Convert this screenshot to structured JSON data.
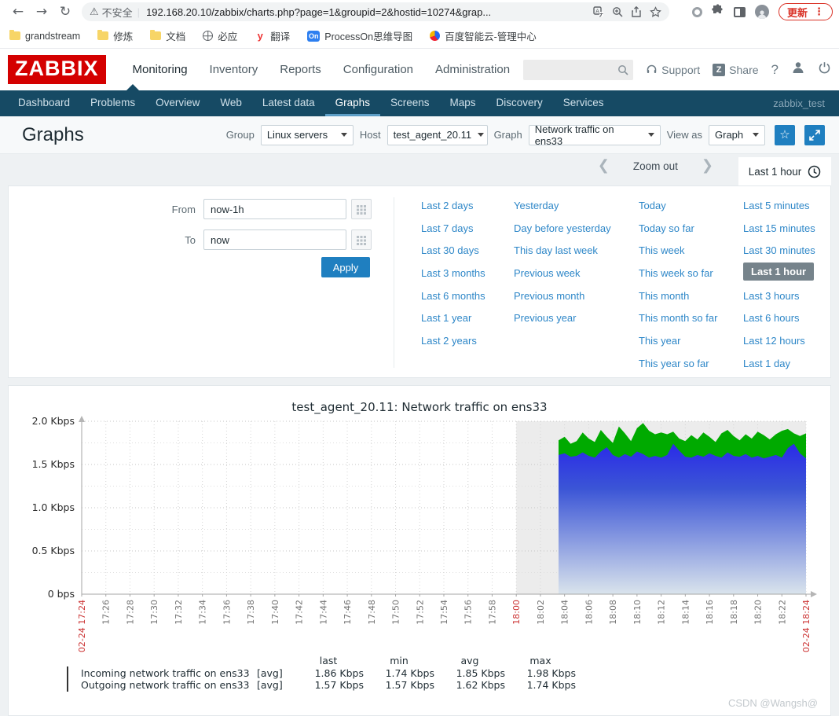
{
  "browser": {
    "security_label": "不安全",
    "url": "192.168.20.10/zabbix/charts.php?page=1&groupid=2&hostid=10274&grap...",
    "update_button": "更新",
    "toolbar_icons": [
      "back-icon",
      "forward-icon",
      "reload-icon",
      "warning-icon",
      "translate-icon",
      "zoom-icon",
      "share-icon",
      "bookmark-star-icon",
      "extension-ring-icon",
      "puzzle-icon",
      "side-panel-icon",
      "profile-avatar",
      "menu-dots-icon"
    ],
    "bookmarks": [
      {
        "label": "grandstream",
        "icon": "folder"
      },
      {
        "label": "修炼",
        "icon": "folder"
      },
      {
        "label": "文档",
        "icon": "folder"
      },
      {
        "label": "必应",
        "icon": "globe"
      },
      {
        "label": "翻译",
        "icon": "y-badge"
      },
      {
        "label": "ProcessOn思维导图",
        "icon": "on-badge"
      },
      {
        "label": "百度智能云-管理中心",
        "icon": "baidu"
      }
    ]
  },
  "header": {
    "logo": "ZABBIX",
    "menu": [
      "Monitoring",
      "Inventory",
      "Reports",
      "Configuration",
      "Administration"
    ],
    "active_menu": "Monitoring",
    "support_label": "Support",
    "share_label": "Share",
    "share_badge": "Z",
    "help_label": "?"
  },
  "nav": {
    "items": [
      "Dashboard",
      "Problems",
      "Overview",
      "Web",
      "Latest data",
      "Graphs",
      "Screens",
      "Maps",
      "Discovery",
      "Services"
    ],
    "active": "Graphs",
    "context": "zabbix_test"
  },
  "toolbar": {
    "page_title": "Graphs",
    "group_label": "Group",
    "group_value": "Linux servers",
    "host_label": "Host",
    "host_value": "test_agent_20.11",
    "graph_label": "Graph",
    "graph_value": "Network traffic on ens33",
    "viewas_label": "View as",
    "viewas_value": "Graph"
  },
  "timebar": {
    "zoom_out_label": "Zoom out",
    "range_tab_label": "Last 1 hour"
  },
  "time_filter": {
    "from_label": "From",
    "from_value": "now-1h",
    "to_label": "To",
    "to_value": "now",
    "apply_label": "Apply",
    "selected": "Last 1 hour",
    "columns": [
      [
        "Last 2 days",
        "Last 7 days",
        "Last 30 days",
        "Last 3 months",
        "Last 6 months",
        "Last 1 year",
        "Last 2 years"
      ],
      [
        "Yesterday",
        "Day before yesterday",
        "This day last week",
        "Previous week",
        "Previous month",
        "Previous year"
      ],
      [
        "Today",
        "Today so far",
        "This week",
        "This week so far",
        "This month",
        "This month so far",
        "This year",
        "This year so far"
      ],
      [
        "Last 5 minutes",
        "Last 15 minutes",
        "Last 30 minutes",
        "Last 1 hour",
        "Last 3 hours",
        "Last 6 hours",
        "Last 12 hours",
        "Last 1 day"
      ]
    ]
  },
  "chart_data": {
    "type": "area",
    "title": "test_agent_20.11: Network traffic on ens33",
    "ylim": [
      0,
      2.0
    ],
    "yticks": [
      {
        "v": 2.0,
        "label": "2.0 Kbps"
      },
      {
        "v": 1.5,
        "label": "1.5 Kbps"
      },
      {
        "v": 1.0,
        "label": "1.0 Kbps"
      },
      {
        "v": 0.5,
        "label": "0.5 Kbps"
      },
      {
        "v": 0.0,
        "label": "0 bps"
      }
    ],
    "x_range_minutes": [
      0,
      60
    ],
    "xticks": [
      {
        "m": 0,
        "label": "02-24 17:24",
        "red": true
      },
      {
        "m": 2,
        "label": "17:26"
      },
      {
        "m": 4,
        "label": "17:28"
      },
      {
        "m": 6,
        "label": "17:30"
      },
      {
        "m": 8,
        "label": "17:32"
      },
      {
        "m": 10,
        "label": "17:34"
      },
      {
        "m": 12,
        "label": "17:36"
      },
      {
        "m": 14,
        "label": "17:38"
      },
      {
        "m": 16,
        "label": "17:40"
      },
      {
        "m": 18,
        "label": "17:42"
      },
      {
        "m": 20,
        "label": "17:44"
      },
      {
        "m": 22,
        "label": "17:46"
      },
      {
        "m": 24,
        "label": "17:48"
      },
      {
        "m": 26,
        "label": "17:50"
      },
      {
        "m": 28,
        "label": "17:52"
      },
      {
        "m": 30,
        "label": "17:54"
      },
      {
        "m": 32,
        "label": "17:56"
      },
      {
        "m": 34,
        "label": "17:58"
      },
      {
        "m": 36,
        "label": "18:00",
        "red": true
      },
      {
        "m": 38,
        "label": "18:02"
      },
      {
        "m": 40,
        "label": "18:04"
      },
      {
        "m": 42,
        "label": "18:06"
      },
      {
        "m": 44,
        "label": "18:08"
      },
      {
        "m": 46,
        "label": "18:10"
      },
      {
        "m": 48,
        "label": "18:12"
      },
      {
        "m": 50,
        "label": "18:14"
      },
      {
        "m": 52,
        "label": "18:16"
      },
      {
        "m": 54,
        "label": "18:18"
      },
      {
        "m": 56,
        "label": "18:20"
      },
      {
        "m": 58,
        "label": "18:22"
      },
      {
        "m": 60,
        "label": "02-24 18:24",
        "red": true
      }
    ],
    "non_working_band_minutes": [
      36,
      60
    ],
    "data_start_min": 39.5,
    "sample_step_min": 0.5,
    "legend_headers": [
      "last",
      "min",
      "avg",
      "max"
    ],
    "series": [
      {
        "name": "Incoming network traffic on ens33",
        "fn": "[avg]",
        "color": "#00AA00",
        "stats": [
          "1.86 Kbps",
          "1.74 Kbps",
          "1.85 Kbps",
          "1.98 Kbps"
        ],
        "values": [
          1.78,
          1.82,
          1.74,
          1.77,
          1.87,
          1.8,
          1.76,
          1.9,
          1.82,
          1.75,
          1.94,
          1.86,
          1.77,
          1.92,
          1.98,
          1.89,
          1.85,
          1.87,
          1.85,
          1.88,
          1.8,
          1.77,
          1.84,
          1.79,
          1.87,
          1.82,
          1.76,
          1.86,
          1.9,
          1.83,
          1.78,
          1.85,
          1.8,
          1.88,
          1.84,
          1.79,
          1.85,
          1.89,
          1.91,
          1.86,
          1.83,
          1.86
        ]
      },
      {
        "name": "Outgoing network traffic on ens33",
        "fn": "[avg]",
        "color": "#2121DD",
        "stats": [
          "1.57 Kbps",
          "1.57 Kbps",
          "1.62 Kbps",
          "1.74 Kbps"
        ],
        "values": [
          1.61,
          1.63,
          1.59,
          1.6,
          1.64,
          1.6,
          1.58,
          1.65,
          1.7,
          1.61,
          1.58,
          1.62,
          1.59,
          1.65,
          1.62,
          1.58,
          1.6,
          1.58,
          1.61,
          1.74,
          1.66,
          1.59,
          1.58,
          1.61,
          1.59,
          1.63,
          1.6,
          1.58,
          1.64,
          1.6,
          1.59,
          1.62,
          1.58,
          1.6,
          1.57,
          1.59,
          1.61,
          1.58,
          1.69,
          1.74,
          1.63,
          1.57
        ]
      }
    ]
  },
  "watermark": "CSDN @Wangsh@"
}
